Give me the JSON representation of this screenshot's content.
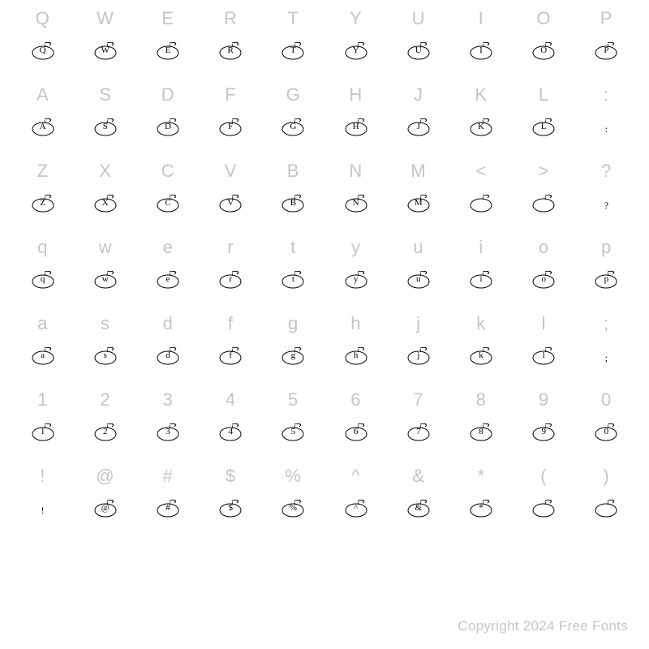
{
  "background_color": "#ffffff",
  "label_color": "#c5c5c5",
  "label_fontsize": 22,
  "glyph_color": "#000000",
  "glyph_fontsize": 11,
  "columns": 10,
  "footer": "Copyright 2024 Free Fonts",
  "rows": [
    [
      {
        "label": "Q",
        "glyph": "Q",
        "decorated": true
      },
      {
        "label": "W",
        "glyph": "W",
        "decorated": true
      },
      {
        "label": "E",
        "glyph": "E",
        "decorated": true
      },
      {
        "label": "R",
        "glyph": "R",
        "decorated": true
      },
      {
        "label": "T",
        "glyph": "T",
        "decorated": true
      },
      {
        "label": "Y",
        "glyph": "Y",
        "decorated": true
      },
      {
        "label": "U",
        "glyph": "U",
        "decorated": true
      },
      {
        "label": "I",
        "glyph": "I",
        "decorated": true
      },
      {
        "label": "O",
        "glyph": "O",
        "decorated": true
      },
      {
        "label": "P",
        "glyph": "P",
        "decorated": true
      }
    ],
    [
      {
        "label": "A",
        "glyph": "A",
        "decorated": true
      },
      {
        "label": "S",
        "glyph": "S",
        "decorated": true
      },
      {
        "label": "D",
        "glyph": "D",
        "decorated": true
      },
      {
        "label": "F",
        "glyph": "F",
        "decorated": true
      },
      {
        "label": "G",
        "glyph": "G",
        "decorated": true
      },
      {
        "label": "H",
        "glyph": "H",
        "decorated": true
      },
      {
        "label": "J",
        "glyph": "J",
        "decorated": true
      },
      {
        "label": "K",
        "glyph": "K",
        "decorated": true
      },
      {
        "label": "L",
        "glyph": "L",
        "decorated": true
      },
      {
        "label": ":",
        "glyph": ":",
        "decorated": false
      }
    ],
    [
      {
        "label": "Z",
        "glyph": "Z",
        "decorated": true
      },
      {
        "label": "X",
        "glyph": "X",
        "decorated": true
      },
      {
        "label": "C",
        "glyph": "C",
        "decorated": true
      },
      {
        "label": "V",
        "glyph": "V",
        "decorated": true
      },
      {
        "label": "B",
        "glyph": "B",
        "decorated": true
      },
      {
        "label": "N",
        "glyph": "N",
        "decorated": true
      },
      {
        "label": "M",
        "glyph": "M",
        "decorated": true
      },
      {
        "label": "<",
        "glyph": "",
        "decorated": true
      },
      {
        "label": ">",
        "glyph": "",
        "decorated": true
      },
      {
        "label": "?",
        "glyph": "?",
        "decorated": false
      }
    ],
    [
      {
        "label": "q",
        "glyph": "q",
        "decorated": true
      },
      {
        "label": "w",
        "glyph": "w",
        "decorated": true
      },
      {
        "label": "e",
        "glyph": "e",
        "decorated": true
      },
      {
        "label": "r",
        "glyph": "r",
        "decorated": true
      },
      {
        "label": "t",
        "glyph": "t",
        "decorated": true
      },
      {
        "label": "y",
        "glyph": "y",
        "decorated": true
      },
      {
        "label": "u",
        "glyph": "u",
        "decorated": true
      },
      {
        "label": "i",
        "glyph": "i",
        "decorated": true
      },
      {
        "label": "o",
        "glyph": "o",
        "decorated": true
      },
      {
        "label": "p",
        "glyph": "p",
        "decorated": true
      }
    ],
    [
      {
        "label": "a",
        "glyph": "a",
        "decorated": true
      },
      {
        "label": "s",
        "glyph": "s",
        "decorated": true
      },
      {
        "label": "d",
        "glyph": "d",
        "decorated": true
      },
      {
        "label": "f",
        "glyph": "f",
        "decorated": true
      },
      {
        "label": "g",
        "glyph": "g",
        "decorated": true
      },
      {
        "label": "h",
        "glyph": "h",
        "decorated": true
      },
      {
        "label": "j",
        "glyph": "j",
        "decorated": true
      },
      {
        "label": "k",
        "glyph": "k",
        "decorated": true
      },
      {
        "label": "l",
        "glyph": "l",
        "decorated": true
      },
      {
        "label": ";",
        "glyph": ";",
        "decorated": false
      }
    ],
    [
      {
        "label": "1",
        "glyph": "1",
        "decorated": true
      },
      {
        "label": "2",
        "glyph": "2",
        "decorated": true
      },
      {
        "label": "3",
        "glyph": "3",
        "decorated": true
      },
      {
        "label": "4",
        "glyph": "4",
        "decorated": true
      },
      {
        "label": "5",
        "glyph": "5",
        "decorated": true
      },
      {
        "label": "6",
        "glyph": "6",
        "decorated": true
      },
      {
        "label": "7",
        "glyph": "7",
        "decorated": true
      },
      {
        "label": "8",
        "glyph": "8",
        "decorated": true
      },
      {
        "label": "9",
        "glyph": "9",
        "decorated": true
      },
      {
        "label": "0",
        "glyph": "0",
        "decorated": true
      }
    ],
    [
      {
        "label": "!",
        "glyph": "!",
        "decorated": false
      },
      {
        "label": "@",
        "glyph": "@",
        "decorated": true
      },
      {
        "label": "#",
        "glyph": "#",
        "decorated": true
      },
      {
        "label": "$",
        "glyph": "$",
        "decorated": true
      },
      {
        "label": "%",
        "glyph": "%",
        "decorated": true
      },
      {
        "label": "^",
        "glyph": "^",
        "decorated": true
      },
      {
        "label": "&",
        "glyph": "&",
        "decorated": true
      },
      {
        "label": "*",
        "glyph": "*",
        "decorated": true
      },
      {
        "label": "(",
        "glyph": "",
        "decorated": true
      },
      {
        "label": ")",
        "glyph": "",
        "decorated": true
      }
    ]
  ]
}
